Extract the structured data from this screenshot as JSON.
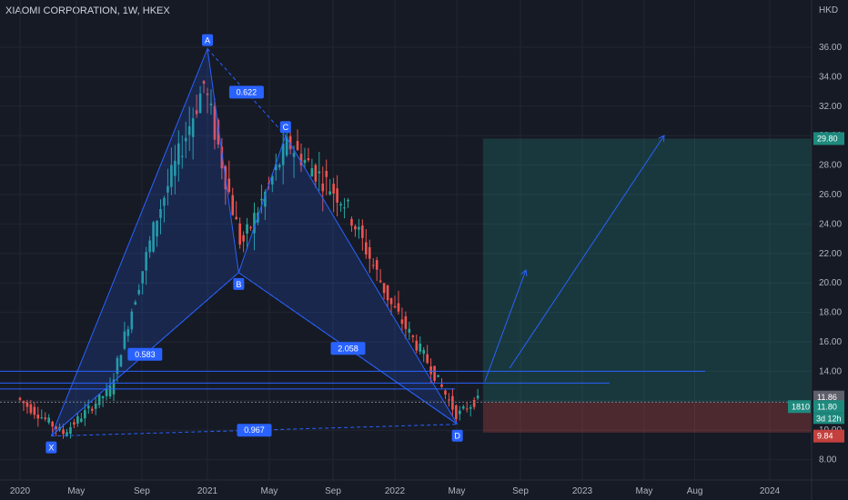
{
  "header": {
    "symbol": "XIAOMI CORPORATION, 1W, HKEX"
  },
  "colors": {
    "bg": "#161a25",
    "up": "#26a69a",
    "down": "#ef5350",
    "pattern": "#2962ff",
    "grid": "#222631"
  },
  "chart_data": {
    "type": "candlestick",
    "currency_label": "HKD",
    "ylim": [
      7,
      38
    ],
    "y_ticks": [
      "8.00",
      "10.00",
      "12.00",
      "14.00",
      "16.00",
      "18.00",
      "20.00",
      "22.00",
      "24.00",
      "26.00",
      "28.00",
      "30.00",
      "32.00",
      "34.00",
      "36.00"
    ],
    "x_ticks": [
      "2020",
      "May",
      "Sep",
      "2021",
      "May",
      "Sep",
      "2022",
      "May",
      "Sep",
      "2023",
      "May",
      "Aug",
      "2024"
    ],
    "pattern_points": [
      {
        "label": "X",
        "date": "2020-03",
        "price": 9.6
      },
      {
        "label": "A",
        "date": "2021-01",
        "price": 35.9
      },
      {
        "label": "B",
        "date": "2021-03",
        "price": 20.7
      },
      {
        "label": "C",
        "date": "2021-06",
        "price": 30.0
      },
      {
        "label": "D",
        "date": "2022-05",
        "price": 10.4
      }
    ],
    "ratios": [
      "0.622",
      "0.583",
      "2.058",
      "0.967"
    ],
    "price_levels": [
      {
        "label": "29.80",
        "kind": "target"
      },
      {
        "label": "11.86",
        "kind": "marker"
      },
      {
        "label": "11.80",
        "kind": "last"
      },
      {
        "label": "9.84",
        "kind": "stop"
      }
    ],
    "last_price_info": {
      "volume_tag": "1810",
      "countdown": "3d 12h"
    },
    "candles_key": [
      [
        2020.0,
        12.2
      ],
      [
        2020.25,
        9.8
      ],
      [
        2020.5,
        12.8
      ],
      [
        2020.75,
        24.5
      ],
      [
        2021.0,
        33.5
      ],
      [
        2021.2,
        22.5
      ],
      [
        2021.45,
        29.5
      ],
      [
        2021.75,
        25.5
      ],
      [
        2022.0,
        18.5
      ],
      [
        2022.2,
        14.5
      ],
      [
        2022.35,
        11.0
      ],
      [
        2022.45,
        12.0
      ]
    ]
  }
}
